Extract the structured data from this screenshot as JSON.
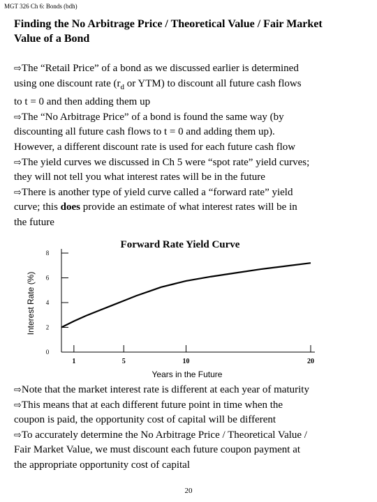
{
  "header": {
    "text": "MGT 326 Ch 6: Bonds (bdh)"
  },
  "title": {
    "line1": "Finding the No Arbitrage Price / Theoretical Value / Fair Market",
    "line2": "Value of a Bond"
  },
  "bullet_icon": "arrow-right-icon",
  "paragraphs": [
    {
      "l1": "The “Retail Price” of a bond as we discussed earlier is determined",
      "l2a": "using one discount rate (r",
      "l2sub": "d",
      "l2b": " or YTM) to discount all future cash flows",
      "l3": "to t = 0 and then adding them up"
    },
    {
      "l1": "The “No Arbitrage Price” of a bond is found the same way (by",
      "l2": "discounting all future cash flows to t = 0 and adding them up).",
      "l3": "However, a different discount rate  is used for each future cash flow"
    },
    {
      "l1": "The yield curves we discussed in Ch 5 were “spot rate” yield curves;",
      "l2": "they will not tell you what interest rates will be in the future"
    },
    {
      "l1": "There is another type of yield curve called a “forward rate” yield",
      "l2a": "curve; this ",
      "l2bold": "does",
      "l2b": " provide an estimate of what interest rates will be in",
      "l3": "the future"
    }
  ],
  "chart_data": {
    "type": "line",
    "title": "Forward Rate Yield Curve",
    "xlabel": "Years in the Future",
    "ylabel": "Interest Rate (%)",
    "xticks": [
      1,
      5,
      10,
      20
    ],
    "yticks": [
      0,
      2,
      4,
      6,
      8
    ],
    "xlim": [
      0,
      20
    ],
    "ylim": [
      0,
      8
    ],
    "grid": false,
    "series": [
      {
        "x": [
          0,
          1,
          2,
          3,
          4,
          5,
          6,
          7,
          8,
          9,
          10,
          12,
          14,
          16,
          18,
          20
        ],
        "y": [
          2.0,
          2.5,
          2.95,
          3.35,
          3.75,
          4.15,
          4.55,
          4.9,
          5.25,
          5.5,
          5.75,
          6.1,
          6.4,
          6.7,
          6.95,
          7.2
        ]
      }
    ]
  },
  "bottom_paragraphs": [
    {
      "l1": "Note that the market interest rate is different at each year of maturity"
    },
    {
      "l1": "This means that at each different future point in time when the",
      "l2": "coupon is paid, the opportunity cost of capital will be different"
    },
    {
      "l1": "To accurately determine the No Arbitrage Price / Theoretical Value /",
      "l2": "Fair Market Value, we must discount each future coupon payment at",
      "l3": "the appropriate opportunity cost of capital"
    }
  ],
  "page_number": "20"
}
